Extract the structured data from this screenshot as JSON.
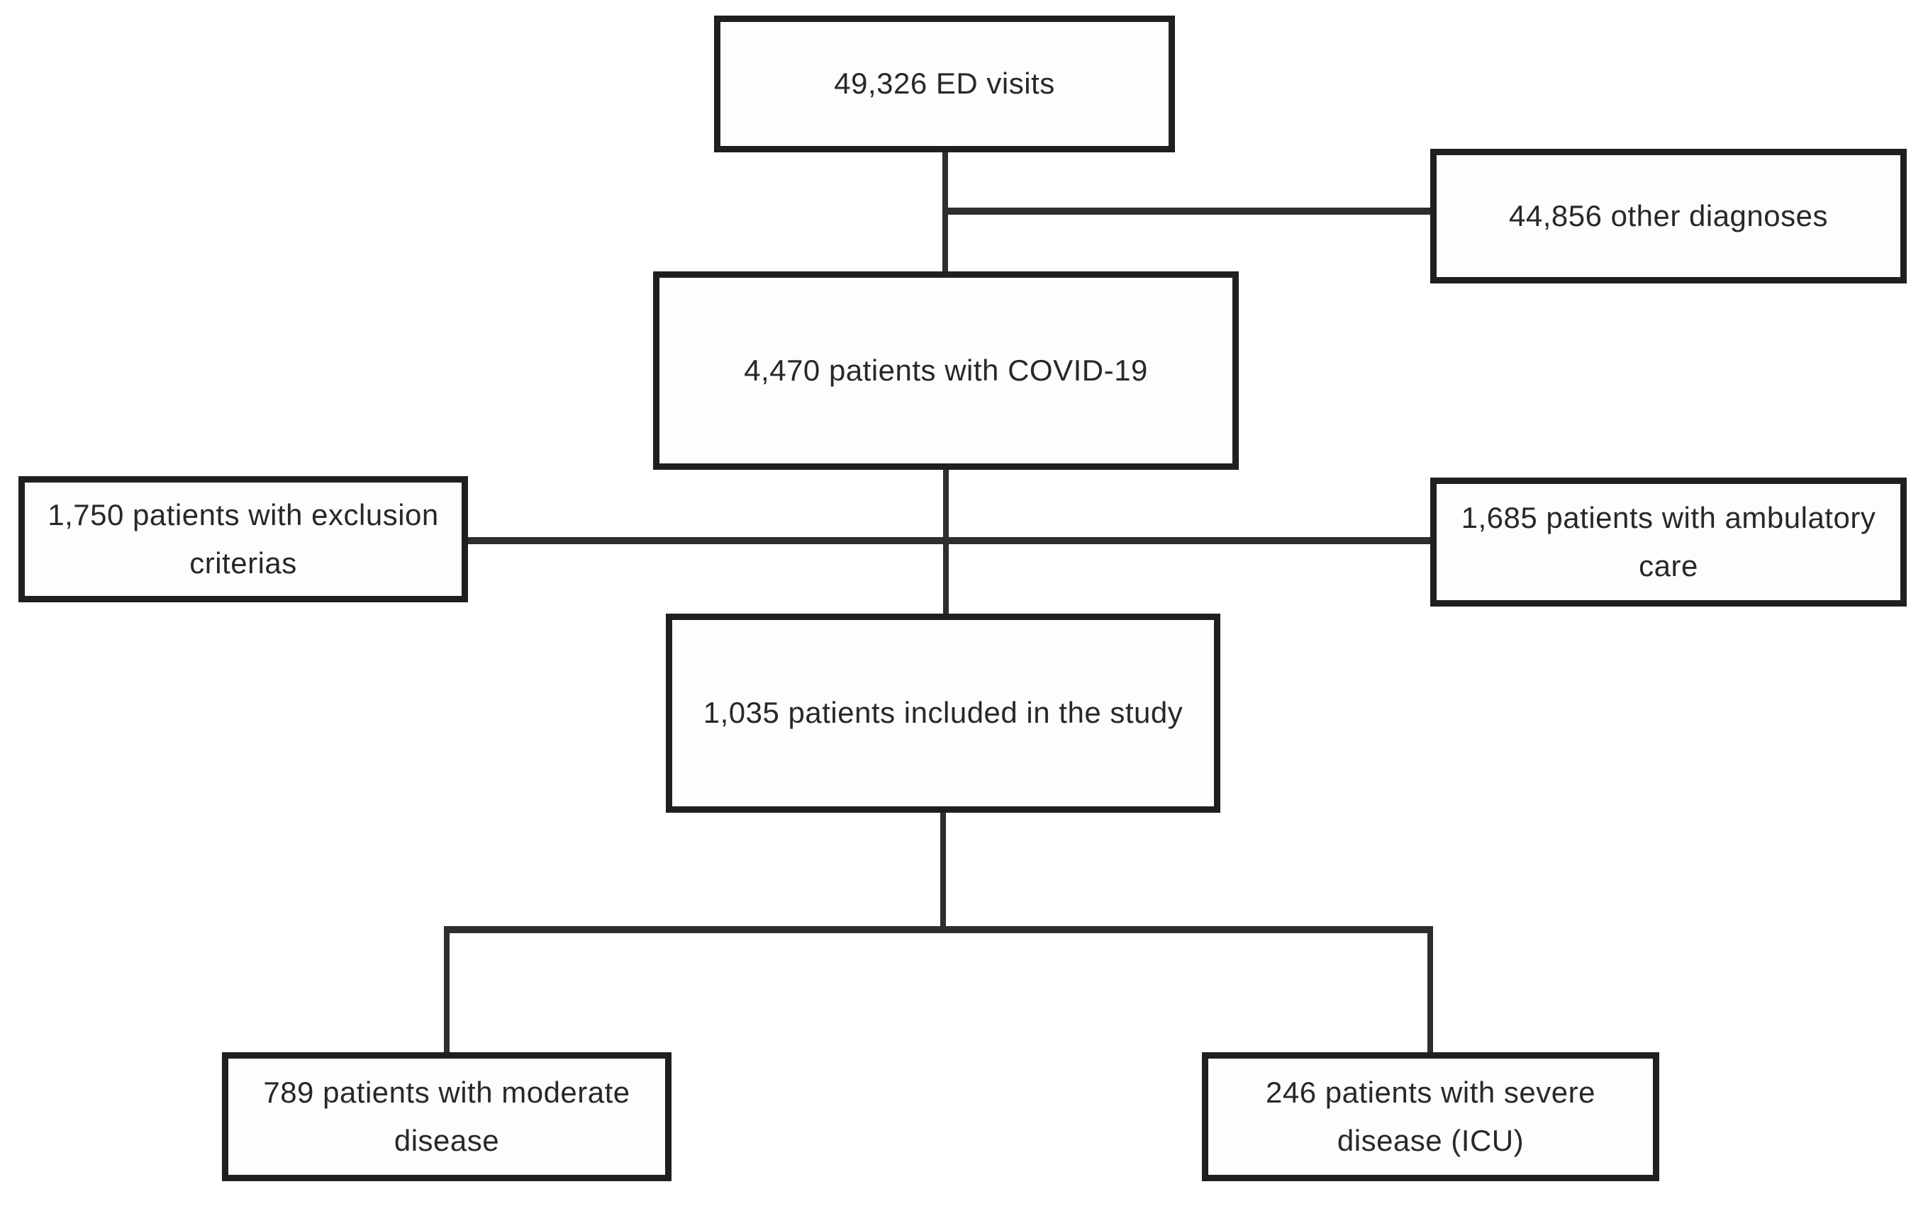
{
  "diagram": {
    "type": "flowchart",
    "description": "Patient inclusion flow diagram for COVID-19 emergency department study",
    "nodes": [
      {
        "id": "ed_visits",
        "text": "49,326 ED visits"
      },
      {
        "id": "other_diagnoses",
        "text": "44,856 other diagnoses"
      },
      {
        "id": "covid_patients",
        "text": "4,470 patients with COVID-19"
      },
      {
        "id": "exclusion",
        "text": "1,750 patients with exclusion criterias"
      },
      {
        "id": "ambulatory",
        "text": "1,685 patients with ambulatory care"
      },
      {
        "id": "included",
        "text": "1,035 patients included in the study"
      },
      {
        "id": "moderate",
        "text": "789 patients with moderate disease"
      },
      {
        "id": "severe",
        "text": "246 patients with severe disease (ICU)"
      }
    ],
    "edges": [
      {
        "from": "ed_visits",
        "to": "covid_patients"
      },
      {
        "from": "ed_visits",
        "to": "other_diagnoses"
      },
      {
        "from": "covid_patients",
        "to": "included"
      },
      {
        "from": "covid_patients",
        "to": "exclusion"
      },
      {
        "from": "covid_patients",
        "to": "ambulatory"
      },
      {
        "from": "included",
        "to": "moderate"
      },
      {
        "from": "included",
        "to": "severe"
      }
    ],
    "colors": {
      "background": "#ffffff",
      "box_fill": "#fdfdfd",
      "box_border": "#1f1f1f",
      "line": "#2e2e2e",
      "text": "#282828"
    }
  }
}
